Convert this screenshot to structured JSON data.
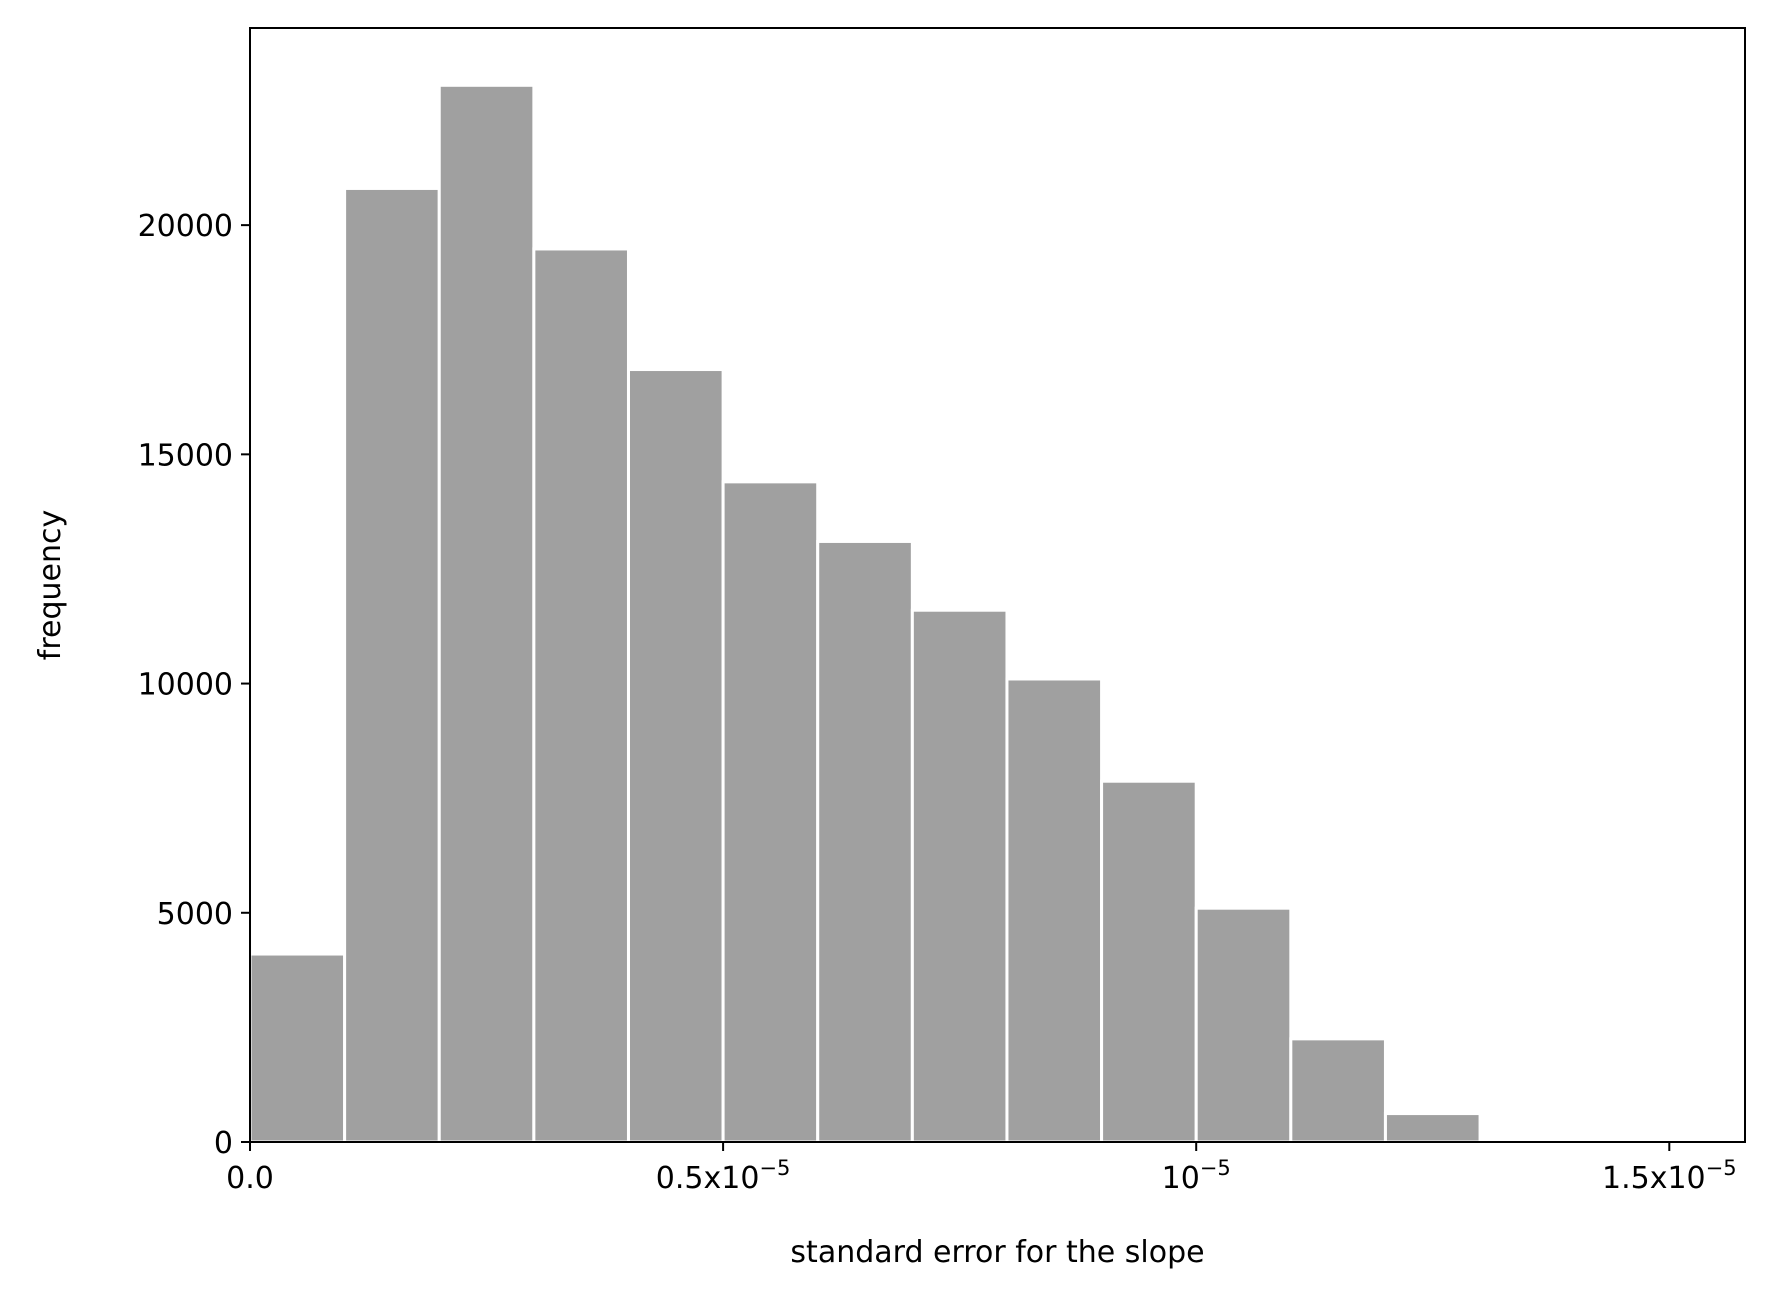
{
  "chart_data": {
    "type": "bar",
    "subtype": "histogram",
    "xlabel": "standard error for the slope",
    "ylabel": "frequency",
    "xlim": [
      0,
      1.58e-05
    ],
    "ylim": [
      0,
      24300
    ],
    "grid": false,
    "bar_color": "#a0a0a0",
    "bar_edge_color": "#ffffff",
    "bin_width": 1e-06,
    "bins": [
      {
        "x0": 0.0,
        "x1": 1e-06,
        "value": 4100
      },
      {
        "x0": 1e-06,
        "x1": 2e-06,
        "value": 20800
      },
      {
        "x0": 2e-06,
        "x1": 3e-06,
        "value": 23050
      },
      {
        "x0": 3e-06,
        "x1": 4e-06,
        "value": 19480
      },
      {
        "x0": 4e-06,
        "x1": 5e-06,
        "value": 16850
      },
      {
        "x0": 5e-06,
        "x1": 6e-06,
        "value": 14400
      },
      {
        "x0": 6e-06,
        "x1": 7e-06,
        "value": 13100
      },
      {
        "x0": 7e-06,
        "x1": 8e-06,
        "value": 11600
      },
      {
        "x0": 8e-06,
        "x1": 9e-06,
        "value": 10100
      },
      {
        "x0": 9e-06,
        "x1": 1e-05,
        "value": 7870
      },
      {
        "x0": 1e-05,
        "x1": 1.1e-05,
        "value": 5100
      },
      {
        "x0": 1.1e-05,
        "x1": 1.2e-05,
        "value": 2250
      },
      {
        "x0": 1.2e-05,
        "x1": 1.3e-05,
        "value": 620
      }
    ],
    "x_ticks": [
      {
        "value": 0.0,
        "label": "0.0"
      },
      {
        "value": 5e-06,
        "label": "0.5x10",
        "sup": "−5"
      },
      {
        "value": 1e-05,
        "label": "10",
        "sup": "−5"
      },
      {
        "value": 1.5e-05,
        "label": "1.5x10",
        "sup": "−5"
      }
    ],
    "y_ticks": [
      {
        "value": 0,
        "label": "0"
      },
      {
        "value": 5000,
        "label": "5000"
      },
      {
        "value": 10000,
        "label": "10000"
      },
      {
        "value": 15000,
        "label": "15000"
      },
      {
        "value": 20000,
        "label": "20000"
      }
    ]
  }
}
